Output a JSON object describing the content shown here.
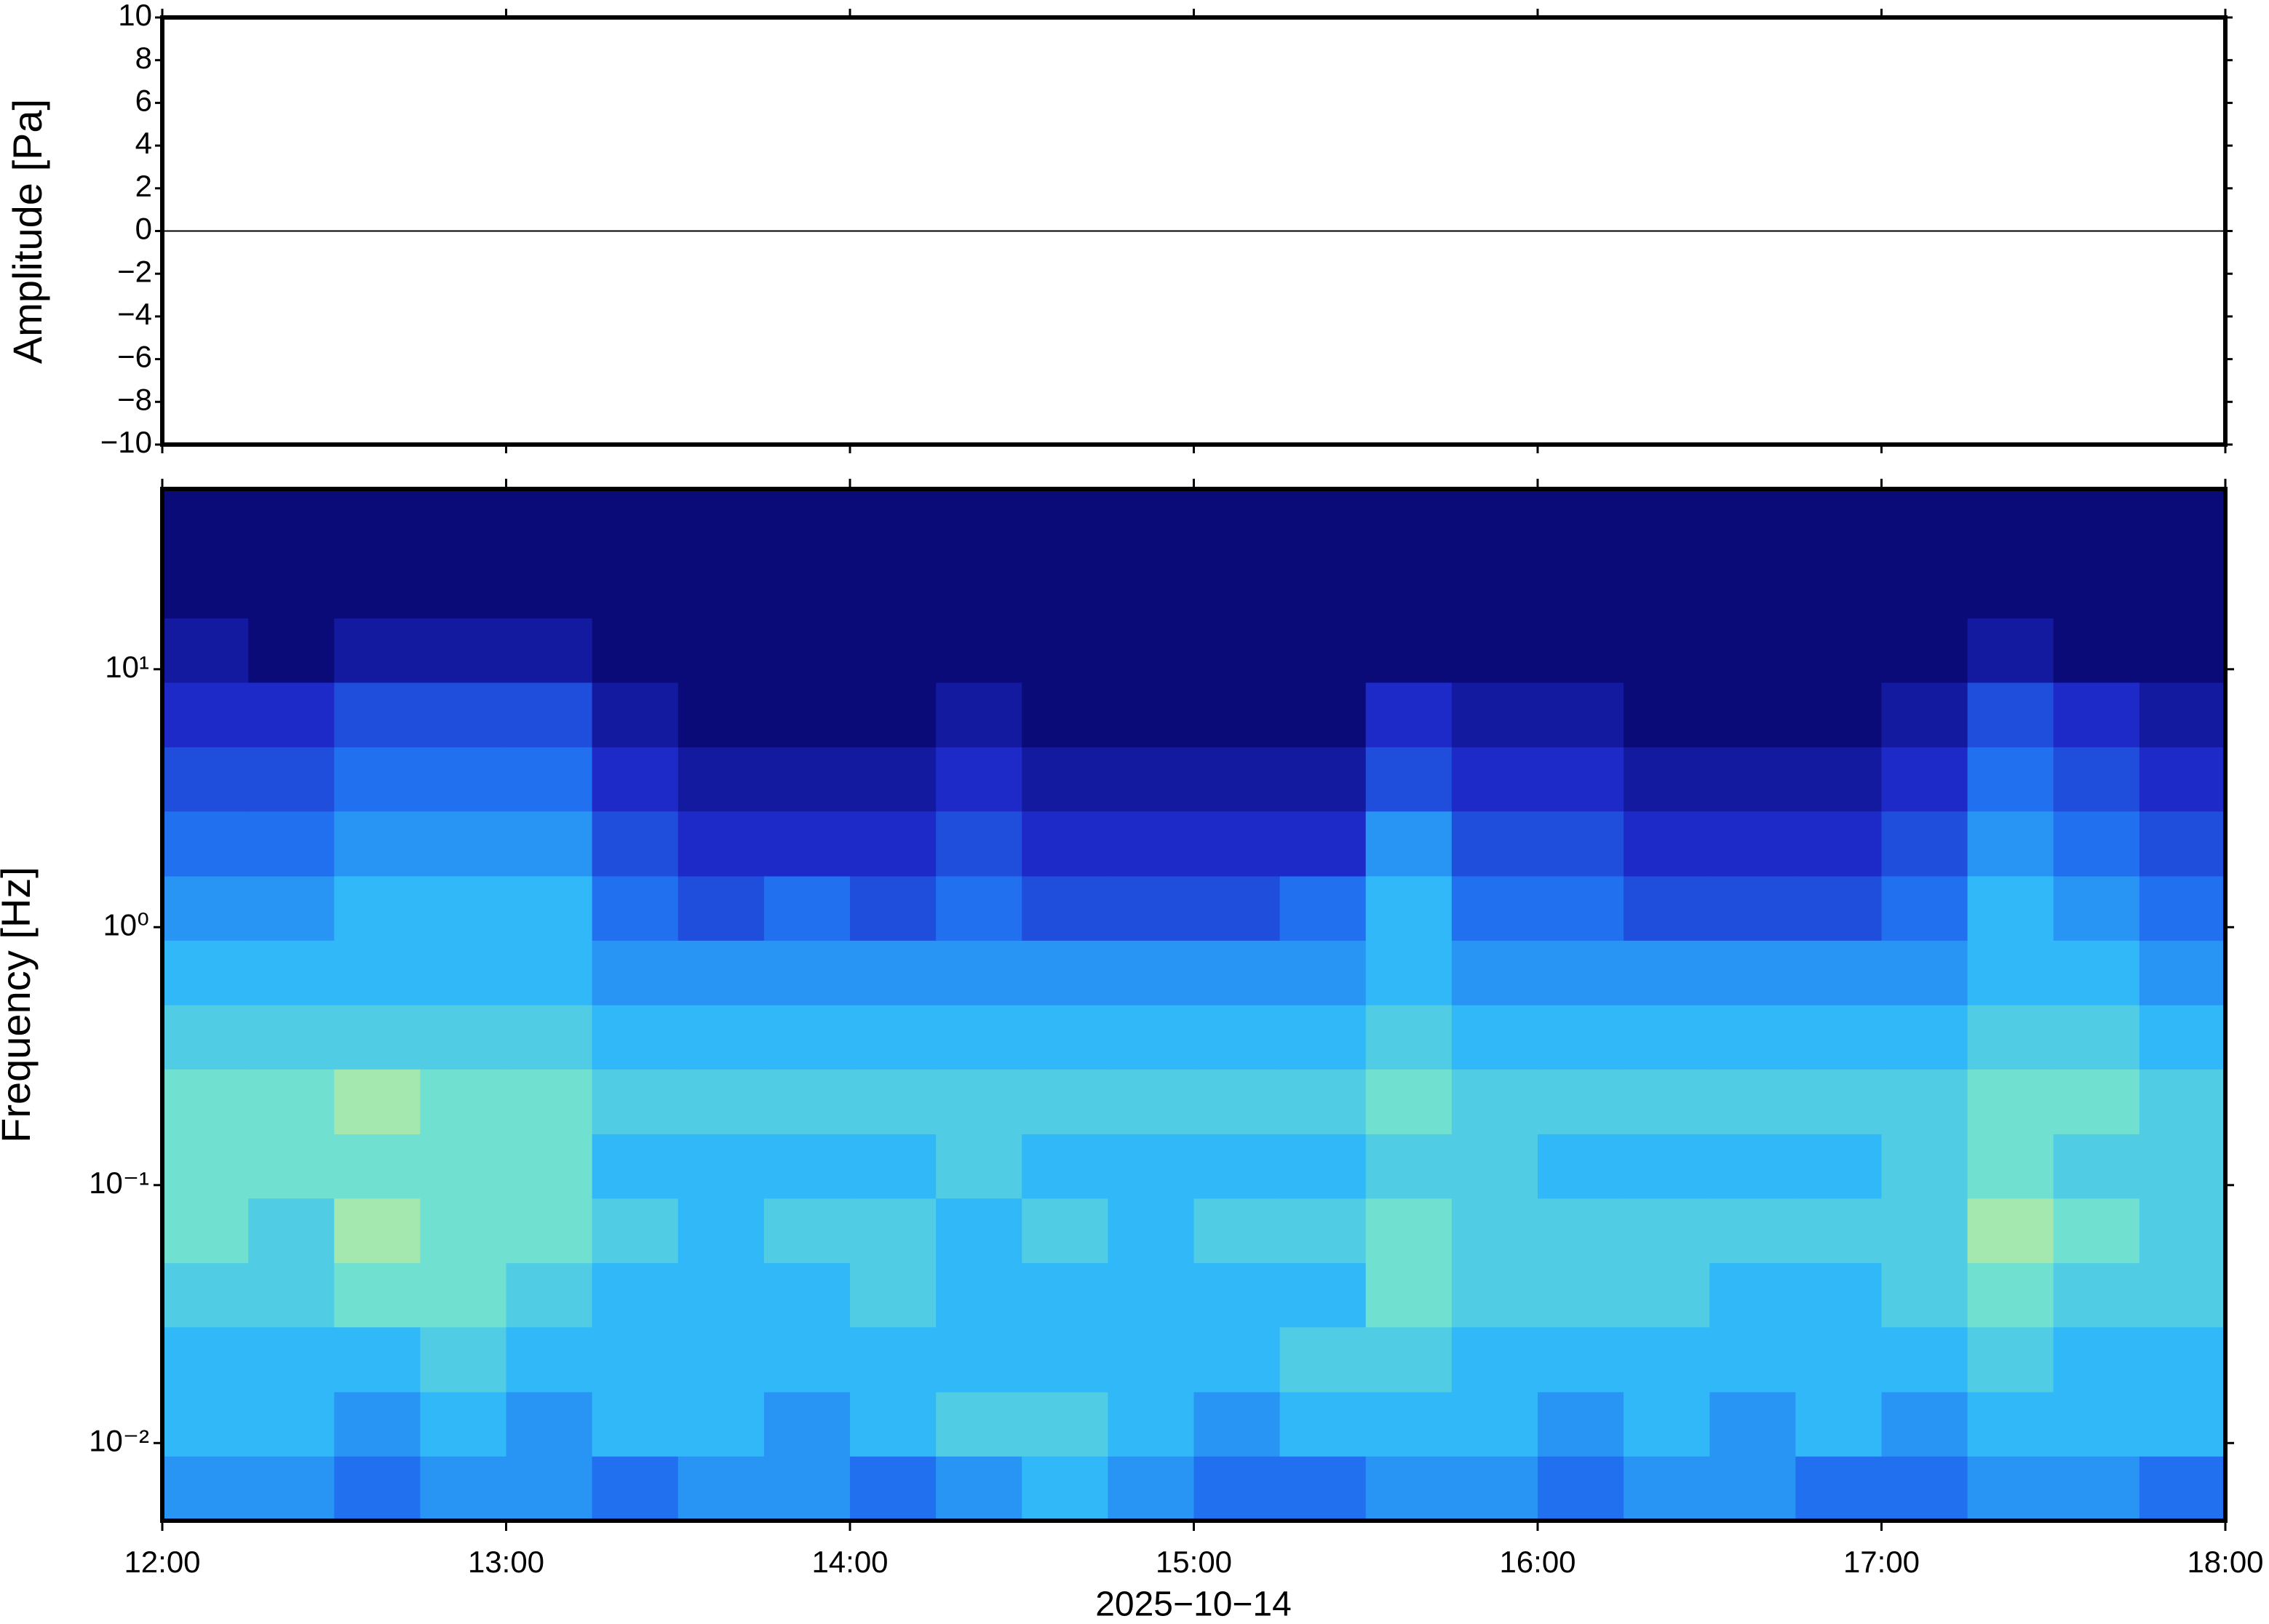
{
  "chart_data": [
    {
      "type": "line",
      "ylabel": "Amplitude [Pa]",
      "color": "#000000",
      "x": [
        12,
        12.5,
        13,
        13.5,
        14,
        14.5,
        15,
        15.5,
        16,
        16.5,
        17,
        17.5,
        18
      ],
      "values": [
        0,
        0,
        0,
        0,
        0,
        0,
        0,
        0,
        0,
        0,
        0,
        0,
        0
      ],
      "xlim": [
        12,
        18
      ],
      "ylim": [
        -10,
        10
      ],
      "yticks": [
        {
          "value": -10,
          "label": "−10"
        },
        {
          "value": -8,
          "label": "−8"
        },
        {
          "value": -6,
          "label": "−6"
        },
        {
          "value": -4,
          "label": "−4"
        },
        {
          "value": -2,
          "label": "−2"
        },
        0,
        2,
        4,
        6,
        8,
        10
      ]
    },
    {
      "type": "heatmap",
      "ylabel": "Frequency [Hz]",
      "xlabel": "2025−10−14",
      "ylog": true,
      "xlim": [
        12,
        18
      ],
      "ylim": [
        0.005,
        50
      ],
      "xticks": [
        {
          "value": 12,
          "label": "12:00"
        },
        {
          "value": 13,
          "label": "13:00"
        },
        {
          "value": 14,
          "label": "14:00"
        },
        {
          "value": 15,
          "label": "15:00"
        },
        {
          "value": 16,
          "label": "16:00"
        },
        {
          "value": 17,
          "label": "17:00"
        },
        {
          "value": 18,
          "label": "18:00"
        }
      ],
      "yticks": [
        {
          "value": 0.01,
          "label": "10⁻²"
        },
        {
          "value": 0.1,
          "label": "10⁻¹"
        },
        {
          "value": 1,
          "label": "10⁰"
        },
        {
          "value": 10,
          "label": "10¹"
        }
      ],
      "x_edges": [
        12,
        12.25,
        12.5,
        12.75,
        13,
        13.25,
        13.5,
        13.75,
        14,
        14.25,
        14.5,
        14.75,
        15,
        15.25,
        15.5,
        15.75,
        16,
        16.25,
        16.5,
        16.75,
        17,
        17.25,
        17.5,
        17.75,
        18
      ],
      "y_edges": [
        0.005,
        0.0089,
        0.0158,
        0.0282,
        0.05,
        0.089,
        0.158,
        0.282,
        0.5,
        0.89,
        1.58,
        2.82,
        5,
        8.9,
        15.8,
        28.2,
        50
      ],
      "zlim": [
        0,
        10
      ],
      "colormap": [
        "#0a0a78",
        "#1e2ac8",
        "#2070f0",
        "#30b8f8",
        "#70e0d0",
        "#d8f090"
      ],
      "z": [
        [
          5,
          5,
          4,
          5,
          5,
          4,
          5,
          5,
          4,
          5,
          6,
          5,
          4,
          4,
          5,
          5,
          4,
          5,
          5,
          4,
          4,
          5,
          5,
          4
        ],
        [
          6,
          6,
          5,
          6,
          5,
          6,
          6,
          5,
          6,
          7,
          7,
          6,
          5,
          6,
          6,
          6,
          5,
          6,
          5,
          6,
          5,
          6,
          6,
          6
        ],
        [
          6,
          6,
          6,
          7,
          6,
          6,
          6,
          6,
          6,
          6,
          6,
          6,
          6,
          7,
          7,
          6,
          6,
          6,
          6,
          6,
          6,
          7,
          6,
          6
        ],
        [
          7,
          7,
          8,
          8,
          7,
          6,
          6,
          6,
          7,
          6,
          6,
          6,
          6,
          6,
          8,
          7,
          7,
          7,
          6,
          6,
          7,
          8,
          7,
          7
        ],
        [
          8,
          7,
          9,
          8,
          8,
          7,
          6,
          7,
          7,
          6,
          7,
          6,
          7,
          7,
          8,
          7,
          7,
          7,
          7,
          7,
          7,
          9,
          8,
          7
        ],
        [
          8,
          8,
          8,
          8,
          8,
          6,
          6,
          6,
          6,
          7,
          6,
          6,
          6,
          6,
          7,
          7,
          6,
          6,
          6,
          6,
          7,
          8,
          7,
          7
        ],
        [
          8,
          8,
          9,
          8,
          8,
          7,
          7,
          7,
          7,
          7,
          7,
          7,
          7,
          7,
          8,
          7,
          7,
          7,
          7,
          7,
          7,
          8,
          8,
          7
        ],
        [
          7,
          7,
          7,
          7,
          7,
          6,
          6,
          6,
          6,
          6,
          6,
          6,
          6,
          6,
          7,
          6,
          6,
          6,
          6,
          6,
          6,
          7,
          7,
          6
        ],
        [
          6,
          6,
          6,
          6,
          6,
          5,
          5,
          5,
          5,
          5,
          5,
          5,
          5,
          5,
          6,
          5,
          5,
          5,
          5,
          5,
          5,
          6,
          6,
          5
        ],
        [
          5,
          5,
          6,
          6,
          6,
          4,
          3,
          4,
          3,
          4,
          3,
          3,
          3,
          4,
          6,
          4,
          4,
          3,
          3,
          3,
          4,
          6,
          5,
          4
        ],
        [
          4,
          4,
          5,
          5,
          5,
          3,
          2,
          2,
          2,
          3,
          2,
          2,
          2,
          2,
          5,
          3,
          3,
          2,
          2,
          2,
          3,
          5,
          4,
          3
        ],
        [
          3,
          3,
          4,
          4,
          4,
          2,
          1,
          1,
          1,
          2,
          1,
          1,
          1,
          1,
          3,
          2,
          2,
          1,
          1,
          1,
          2,
          4,
          3,
          2
        ],
        [
          2,
          2,
          3,
          3,
          3,
          1,
          0,
          0,
          0,
          1,
          0,
          0,
          0,
          0,
          2,
          1,
          1,
          0,
          0,
          0,
          1,
          3,
          2,
          1
        ],
        [
          1,
          0,
          1,
          1,
          1,
          0,
          0,
          0,
          0,
          0,
          0,
          0,
          0,
          0,
          0,
          0,
          0,
          0,
          0,
          0,
          0,
          1,
          0,
          0
        ],
        [
          0,
          0,
          0,
          0,
          0,
          0,
          0,
          0,
          0,
          0,
          0,
          0,
          0,
          0,
          0,
          0,
          0,
          0,
          0,
          0,
          0,
          0,
          0,
          0
        ],
        [
          0,
          0,
          0,
          0,
          0,
          0,
          0,
          0,
          0,
          0,
          0,
          0,
          0,
          0,
          0,
          0,
          0,
          0,
          0,
          0,
          0,
          0,
          0,
          0
        ]
      ]
    }
  ]
}
